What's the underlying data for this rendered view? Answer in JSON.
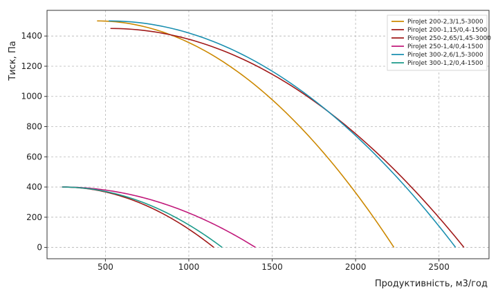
{
  "chart_data": {
    "type": "line",
    "xlabel": "Продуктивність, м3/год",
    "ylabel": "Тиск, Па",
    "xlim": [
      150,
      2800
    ],
    "ylim": [
      -75,
      1570
    ],
    "xticks": [
      500,
      1000,
      1500,
      2000,
      2500
    ],
    "yticks": [
      0,
      200,
      400,
      600,
      800,
      1000,
      1200,
      1400
    ],
    "grid": true,
    "legend_position": "top-right",
    "series": [
      {
        "name": "PiroJet 200-2,3/1,5-3000",
        "color": "#cc8800",
        "x0": 450,
        "p0": 1500,
        "qmax": 2230
      },
      {
        "name": "PiroJet 200-1,15/0,4-1500",
        "color": "#a01818",
        "x0": 240,
        "p0": 400,
        "qmax": 1150
      },
      {
        "name": "PiroJet 250-2,65/1,45-3000",
        "color": "#a01818",
        "x0": 530,
        "p0": 1450,
        "qmax": 2650
      },
      {
        "name": "PiroJet 250-1,4/0,4-1500",
        "color": "#c0187a",
        "x0": 240,
        "p0": 400,
        "qmax": 1400
      },
      {
        "name": "PiroJet 300-2,6/1,5-3000",
        "color": "#1a8fb0",
        "x0": 520,
        "p0": 1500,
        "qmax": 2600
      },
      {
        "name": "PiroJet 300-1,2/0,4-1500",
        "color": "#1a9a8a",
        "x0": 240,
        "p0": 400,
        "qmax": 1200
      }
    ]
  }
}
